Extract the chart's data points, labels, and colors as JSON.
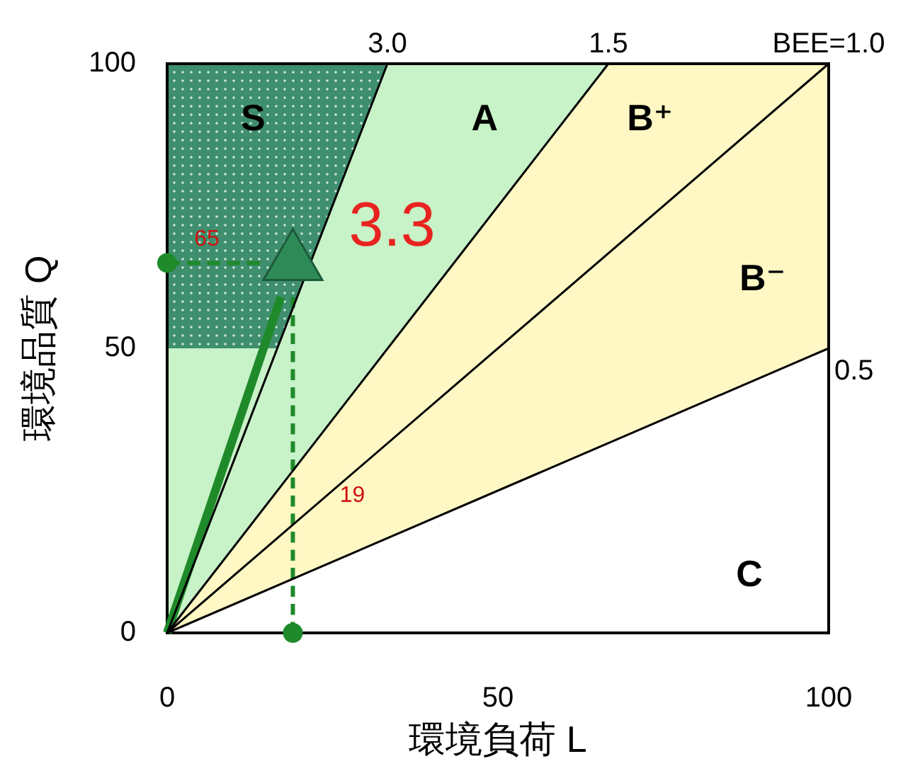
{
  "chart_data": {
    "type": "line",
    "xlabel": "環境負荷 L",
    "ylabel": "環境品質 Q",
    "xlim": [
      0,
      100
    ],
    "ylim": [
      0,
      100
    ],
    "xticks": [
      0,
      50,
      100
    ],
    "yticks": [
      0,
      50,
      100
    ],
    "grid": false,
    "series": [
      {
        "color": "#1f8a2a",
        "x": [
          0,
          17.2
        ],
        "values": [
          0,
          59
        ]
      },
      {
        "color": "#1f8a2a",
        "line_style": "dashed",
        "x": [
          0,
          14
        ],
        "values": [
          65,
          65
        ]
      },
      {
        "color": "#1f8a2a",
        "line_style": "dashed",
        "x": [
          19,
          19
        ],
        "values": [
          59,
          0
        ]
      },
      {
        "name": "3.0",
        "color": "#000000",
        "x": [
          0,
          33.3
        ],
        "values": [
          0,
          100
        ]
      },
      {
        "name": "1.5",
        "color": "#000000",
        "x": [
          0,
          66.7
        ],
        "values": [
          0,
          100
        ]
      },
      {
        "name": "BEE=1.0",
        "color": "#000000",
        "x": [
          0,
          100
        ],
        "values": [
          0,
          100
        ]
      },
      {
        "name": "0.5",
        "color": "#000000",
        "x": [
          0,
          100
        ],
        "values": [
          0,
          50
        ]
      },
      {
        "type": "scatter",
        "color": "#1f8a2a",
        "marker": "circle",
        "x": [
          0,
          19
        ],
        "values": [
          65,
          0
        ]
      },
      {
        "type": "scatter",
        "color": "#2e8b57",
        "marker": "triangle",
        "x": [
          19
        ],
        "values": [
          65
        ]
      }
    ],
    "bands": [
      {
        "axis": "y",
        "from": 50,
        "to": 100,
        "color": "#3f8f6f"
      }
    ],
    "annotations": [
      "S",
      "A",
      "B⁺",
      "B⁻",
      "C",
      "3.3",
      "65",
      "19"
    ]
  }
}
